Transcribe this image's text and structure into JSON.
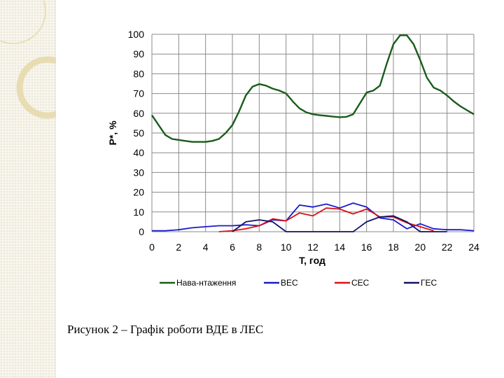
{
  "caption": "Рисунок 2 – Графік роботи ВДЕ в ЛЕС",
  "chart_data": {
    "type": "line",
    "title": "",
    "xlabel": "T, год",
    "ylabel": "P*, %",
    "xlim": [
      0,
      24
    ],
    "ylim": [
      0,
      100
    ],
    "x_ticks": [
      0,
      2,
      4,
      6,
      8,
      10,
      12,
      14,
      16,
      18,
      20,
      22,
      24
    ],
    "y_ticks": [
      0,
      10,
      20,
      30,
      40,
      50,
      60,
      70,
      80,
      90,
      100
    ],
    "grid": true,
    "legend_position": "bottom",
    "series": [
      {
        "name": "Нава-нтаження",
        "color": "#1a5c1a",
        "x": [
          0,
          0.5,
          1,
          1.5,
          2,
          2.5,
          3,
          3.5,
          4,
          4.5,
          5,
          5.5,
          6,
          6.5,
          7,
          7.5,
          8,
          8.5,
          9,
          9.5,
          10,
          10.5,
          11,
          11.5,
          12,
          12.5,
          13,
          13.5,
          14,
          14.5,
          15,
          15.5,
          16,
          16.5,
          17,
          17.5,
          18,
          18.5,
          19,
          19.5,
          20,
          20.5,
          21,
          21.5,
          22,
          22.5,
          23,
          23.5,
          24
        ],
        "y": [
          59,
          54,
          49,
          47,
          46.5,
          46,
          45.5,
          45.5,
          45.5,
          46,
          47,
          50,
          54,
          61,
          69,
          73.5,
          74.8,
          74,
          72.5,
          71.5,
          70,
          66,
          62.5,
          60.5,
          59.5,
          59,
          58.7,
          58.3,
          58,
          58.2,
          59.5,
          65,
          70.5,
          71.5,
          74,
          85,
          95,
          99.5,
          99.5,
          95,
          87,
          78,
          73,
          71.5,
          69,
          66,
          63.5,
          61.5,
          59.5
        ]
      },
      {
        "name": "ВЕС",
        "color": "#1a1acc",
        "x": [
          0,
          1,
          2,
          3,
          4,
          5,
          6,
          7,
          8,
          9,
          10,
          11,
          12,
          13,
          14,
          15,
          16,
          17,
          18,
          19,
          20,
          21,
          22,
          23,
          24
        ],
        "y": [
          0.5,
          0.5,
          1,
          2,
          2.5,
          3,
          3,
          3.5,
          3,
          6,
          5.5,
          13.5,
          12.5,
          14,
          12,
          14.5,
          12.5,
          7,
          6,
          1.5,
          4,
          1.5,
          1,
          1,
          0.5
        ]
      },
      {
        "name": "СЕС",
        "color": "#dd1111",
        "x": [
          5,
          6,
          7,
          8,
          9,
          10,
          11,
          12,
          13,
          14,
          15,
          16,
          17,
          18,
          19,
          20,
          21
        ],
        "y": [
          0,
          0.5,
          1.5,
          3,
          6.5,
          5.5,
          9.5,
          8,
          12,
          11.5,
          9,
          11.5,
          7.5,
          7.5,
          4.5,
          2.5,
          0.5
        ]
      },
      {
        "name": "ГЕС",
        "color": "#121266",
        "x": [
          6,
          7,
          8,
          9,
          10,
          15,
          16,
          17,
          18,
          19,
          20,
          21,
          22
        ],
        "y": [
          0,
          5,
          6,
          5,
          0,
          0,
          5,
          7.5,
          8,
          5,
          0,
          0,
          0
        ]
      }
    ]
  }
}
